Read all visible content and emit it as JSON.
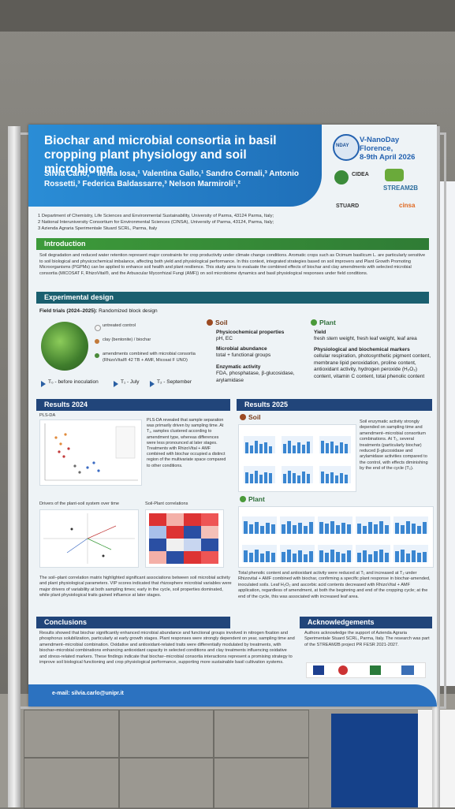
{
  "poster": {
    "title": "Biochar and microbial consortia in basil cropping plant physiology and soil microbiome",
    "authors": "Silvia Carlo,¹* Ilenia Iosa,¹ Valentina Gallo,¹ Sandro Cornali,³ Antonio Rossetti,³ Federica Baldassarre,³ Nelson Marmiroli¹,²",
    "event_name": "V-NanoDay",
    "event_place": "Florence,",
    "event_date": "8-9th April 2026",
    "logos": [
      "NDAY",
      "CIDEA",
      "STREAM2B",
      "STUARD",
      "cinsa"
    ],
    "affiliations": [
      "1 Department of Chemistry, Life Sciences and Environmental Sustainability, University of Parma, 43124 Parma, Italy;",
      "2 National Interuniversity Consortium for Environmental Sciences (CINSA), University of Parma, 43124, Parma, Italy;",
      "3 Azienda Agraria Sperimentale Stuard SCRL, Parma, Italy"
    ],
    "intro_heading": "Introduction",
    "intro_text": "Soil degradation and reduced water retention represent major constraints for crop productivity under climate change conditions. Aromatic crops such as Ocimum basilicum L. are particularly sensitive to soil biological and physicochemical imbalance, affecting both yield and physiological performance. In this context, integrated strategies based on soil improvers and Plant Growth Promoting Microorganisms (PGPMs) can be applied to enhance soil health and plant resilience. This study aims to evaluate the combined effects of biochar and clay amendments with selected microbial consortia (MICOSAT F, RhizoVital®, and the Arbuscular Mycorrhizal Fungi (AMF)) on soil microbiome dynamics and basil physiological responses under field conditions.",
    "exp_heading": "Experimental design",
    "field_trials": "Field trials (2024–2025):",
    "field_trials_rest": " Randomized block design",
    "treatments": [
      "untreated control",
      "clay (bentonite) / biochar",
      "amendments combined with microbial consortia (RhizoVital® 42 TB + AMF, Micosat F UNO)"
    ],
    "timeline": [
      "T₀ - before inoculation",
      "T₁ - July",
      "T₂ - September"
    ],
    "soil_heading": "Soil",
    "soil_items": [
      {
        "title": "Physicochemical properties",
        "text": "pH, EC"
      },
      {
        "title": "Microbial abundance",
        "text": "total + functional groups"
      },
      {
        "title": "Enzymatic activity",
        "text": "FDA, phosphatase, β-glucosidase, arylamidase"
      }
    ],
    "plant_heading": "Plant",
    "plant_items": [
      {
        "title": "Yield",
        "text": "fresh stem weight, fresh leaf weight, leaf area"
      },
      {
        "title": "Physiological and biochemical markers",
        "text": "cellular respiration, photosynthetic pigment content, membrane lipid peroxidation, proline content, antioxidant activity, hydrogen peroxide (H₂O₂) content, vitamin C content, total phenolic content"
      }
    ],
    "results2024_heading": "Results 2024",
    "plsda_label": "PLS-DA",
    "plsda_text": "PLS-DA revealed that sample separation was primarily driven by sampling time. At T₁, samples clustered according to amendment type, whereas differences were less pronounced at later stages. Treatments with RhizoVital + AMF combined with biochar occupied a distinct region of the multivariate space compared to other conditions.",
    "drivers_label": "Drivers of the plant-soil system over time",
    "corr_label": "Soil-Plant correlations",
    "results2024_text": "The soil–plant correlation matrix highlighted significant associations between soil microbial activity and plant physiological parameters. VIP scores indicated that rhizosphere microbial variables were major drivers of variability at both sampling times; early in the cycle, soil properties dominated, while plant physiological traits gained influence at later stages.",
    "results2025_heading": "Results 2025",
    "soil_results_text": "Soil enzymatic activity strongly depended on sampling time and amendment–microbial consortium combinations. At T₁, several treatments (particularly biochar) reduced β-glucosidase and arylamidase activities compared to the control, with effects diminishing by the end of the cycle (T₂).",
    "plant_results_text": "Total phenolic content and antioxidant activity were reduced at T₁ and increased at T₂ under Rhizovital + AMF combined with biochar, confirming a specific plant response in biochar-amended, inoculated soils. Leaf H₂O₂ and ascorbic acid contents decreased with RhizoVital + AMF application, regardless of amendment, at both the beginning and end of the cropping cycle; at the end of the cycle, this was associated with increased leaf area.",
    "conclusions_heading": "Conclusions",
    "conclusions_text": "Results showed that biochar significantly enhanced microbial abundance and functional groups involved in nitrogen fixation and phosphorus solubilization, particularly at early growth stages. Plant responses were strongly dependent on year, sampling time and amendment–microbial combination. Oxidative and antioxidant-related traits were differentially modulated by treatments, with biochar–microbial combinations enhancing antioxidant capacity in selected conditions and clay treatments influencing oxidative and stress-related markers. These findings indicate that biochar–microbial consortia interactions represent a promising strategy to improve soil biological functioning and crop physiological performance, supporting more sustainable basil cultivation systems.",
    "ack_heading": "Acknowledgements",
    "ack_text": "Authors acknowledge the support of Azienda Agraria Sperimentale Stuard SCRL, Parma, Italy. The research was part of the STREAM2B project PR FESR 2021-2027.",
    "email": "e-mail: silvia.carlo@unipr.it"
  },
  "colors": {
    "header_blue": "#2a8dd6",
    "section_green": "#3d9a3a",
    "section_teal": "#1a5f6f",
    "section_navy": "#21457a",
    "soil_brown": "#7a3e1c",
    "plant_green": "#2f7c35"
  }
}
